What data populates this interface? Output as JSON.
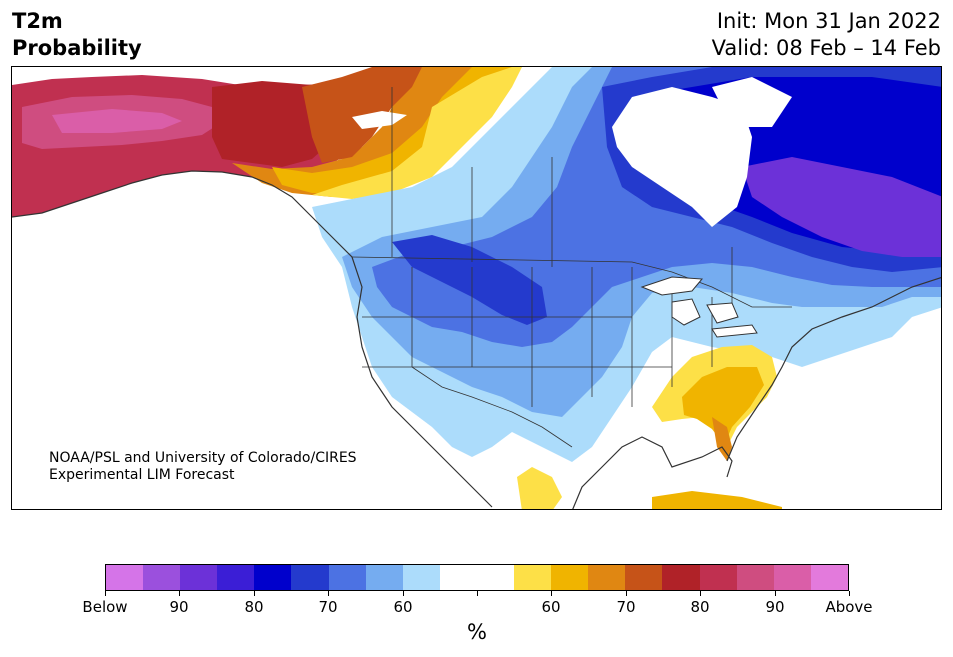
{
  "header": {
    "title_line1": "T2m",
    "title_line2": "Probability",
    "init_text": "Init: Mon 31 Jan 2022",
    "valid_text": "Valid: 08 Feb – 14 Feb"
  },
  "map": {
    "credit_line1": "NOAA/PSL and University of Colorado/CIRES",
    "credit_line2": "Experimental LIM Forecast"
  },
  "colorbar": {
    "unit_label": "%",
    "colors": [
      "#d574e8",
      "#9b50dd",
      "#6c31d8",
      "#3b1ed6",
      "#0000cc",
      "#243acd",
      "#4c72e3",
      "#75acf0",
      "#acdcfb",
      "#ffffff",
      "#ffffff",
      "#fde047",
      "#f0b400",
      "#e08712",
      "#c65318",
      "#b02228",
      "#c03050",
      "#cf4d80",
      "#da5ea8",
      "#e37adc"
    ],
    "tick_labels": [
      "Below",
      "90",
      "80",
      "70",
      "60",
      "",
      "60",
      "70",
      "80",
      "90",
      "Above"
    ]
  }
}
